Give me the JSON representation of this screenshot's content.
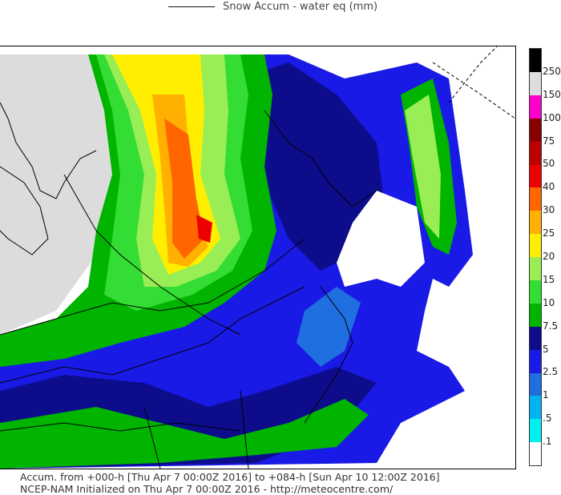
{
  "legend": {
    "label": "Snow Accum - water eq (mm)"
  },
  "footer": {
    "line1": "Accum. from +000-h [Thu Apr 7 00:00Z 2016] to +084-h [Sun Apr 10 12:00Z 2016]",
    "line2": "NCEP-NAM Initialized on Thu Apr 7 00:00Z 2016 - http://meteocentre.com/"
  },
  "colorbar": {
    "levels": [
      {
        "label": ".1",
        "color": "#ffffff"
      },
      {
        "label": ".5",
        "color": "#00f0f0"
      },
      {
        "label": "1",
        "color": "#00b4f0"
      },
      {
        "label": "2.5",
        "color": "#1f6fe0"
      },
      {
        "label": "5",
        "color": "#1a1ae6"
      },
      {
        "label": "7.5",
        "color": "#0d0d8c"
      },
      {
        "label": "10",
        "color": "#00b400"
      },
      {
        "label": "15",
        "color": "#33dd33"
      },
      {
        "label": "20",
        "color": "#99ee55"
      },
      {
        "label": "25",
        "color": "#ffee00"
      },
      {
        "label": "30",
        "color": "#ffb000"
      },
      {
        "label": "40",
        "color": "#ff6600"
      },
      {
        "label": "50",
        "color": "#ee0000"
      },
      {
        "label": "75",
        "color": "#bb0000"
      },
      {
        "label": "100",
        "color": "#880000"
      },
      {
        "label": "150",
        "color": "#ff00cc"
      },
      {
        "label": "250",
        "color": "#dddddd"
      },
      {
        "label": "",
        "color": "#000000"
      }
    ]
  }
}
